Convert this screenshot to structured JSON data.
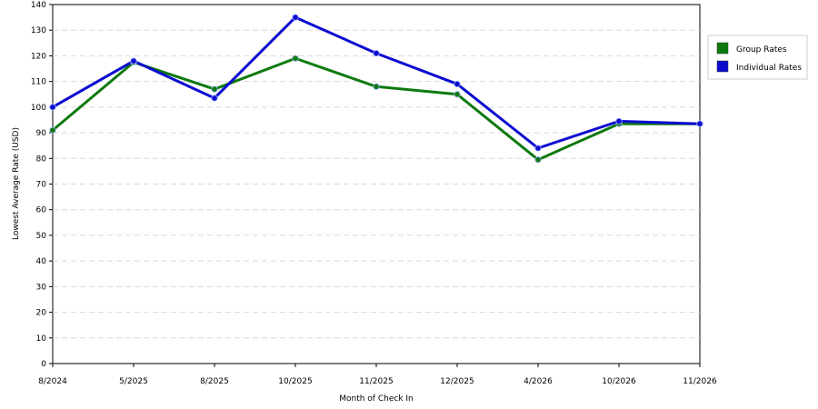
{
  "chart_data": {
    "type": "line",
    "categories": [
      "8/2024",
      "5/2025",
      "8/2025",
      "10/2025",
      "11/2025",
      "12/2025",
      "4/2026",
      "10/2026",
      "11/2026"
    ],
    "series": [
      {
        "name": "Group Rates",
        "color": "#0e7a0e",
        "values": [
          91,
          117.5,
          107,
          119,
          108,
          105,
          79.5,
          93.5,
          93.5
        ]
      },
      {
        "name": "Individual Rates",
        "color": "#0c0cd0",
        "values": [
          100,
          118,
          103.5,
          135,
          121,
          109,
          84,
          94.5,
          93.5
        ]
      }
    ],
    "xlabel": "Month of Check In",
    "ylabel": "Lowest Average Rate (USD)",
    "ylim": [
      0,
      140
    ],
    "yticks": [
      0,
      10,
      20,
      30,
      40,
      50,
      60,
      70,
      80,
      90,
      100,
      110,
      120,
      130,
      140
    ],
    "grid": true,
    "legend_position": "top-right"
  }
}
